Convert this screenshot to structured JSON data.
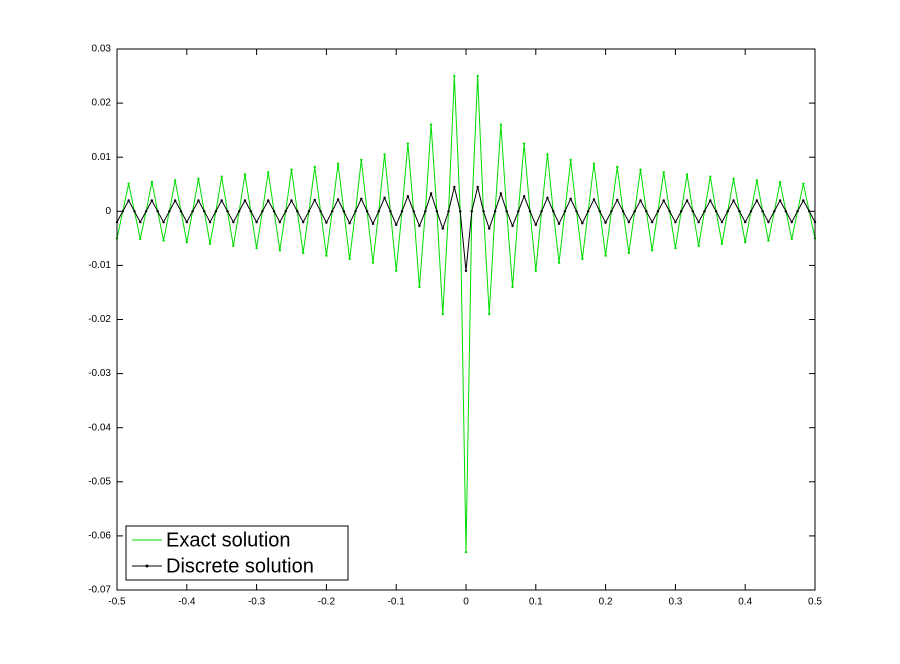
{
  "chart_data": {
    "type": "line",
    "legend": "lower left",
    "xlim": [
      -0.5,
      0.5
    ],
    "ylim": [
      -0.07,
      0.03
    ],
    "xticks": [
      -0.5,
      -0.4,
      -0.3,
      -0.2,
      -0.1,
      0,
      0.1,
      0.2,
      0.3,
      0.4,
      0.5
    ],
    "yticks": [
      0.03,
      0.02,
      0.01,
      0,
      -0.01,
      -0.02,
      -0.03,
      -0.04,
      -0.05,
      -0.06,
      -0.07
    ],
    "x": [
      -0.5,
      -0.4917,
      -0.4833,
      -0.475,
      -0.4667,
      -0.4583,
      -0.45,
      -0.4417,
      -0.4333,
      -0.425,
      -0.4167,
      -0.4083,
      -0.4,
      -0.3917,
      -0.3833,
      -0.375,
      -0.3667,
      -0.3583,
      -0.35,
      -0.3417,
      -0.3333,
      -0.325,
      -0.3167,
      -0.3083,
      -0.3,
      -0.2917,
      -0.2833,
      -0.275,
      -0.2667,
      -0.2583,
      -0.25,
      -0.2417,
      -0.2333,
      -0.225,
      -0.2167,
      -0.2083,
      -0.2,
      -0.1917,
      -0.1833,
      -0.175,
      -0.1667,
      -0.1583,
      -0.15,
      -0.1417,
      -0.1333,
      -0.125,
      -0.1167,
      -0.1083,
      -0.1,
      -0.0917,
      -0.0833,
      -0.075,
      -0.0667,
      -0.0583,
      -0.05,
      -0.0417,
      -0.0333,
      -0.025,
      -0.0167,
      -0.0083,
      0,
      0.0083,
      0.0167,
      0.025,
      0.0333,
      0.0417,
      0.05,
      0.0583,
      0.0667,
      0.075,
      0.0833,
      0.0917,
      0.1,
      0.1083,
      0.1167,
      0.125,
      0.1333,
      0.1417,
      0.15,
      0.1583,
      0.1667,
      0.175,
      0.1833,
      0.1917,
      0.2,
      0.2083,
      0.2167,
      0.225,
      0.2333,
      0.2417,
      0.25,
      0.2583,
      0.2667,
      0.275,
      0.2833,
      0.2917,
      0.3,
      0.3083,
      0.3167,
      0.325,
      0.3333,
      0.3417,
      0.35,
      0.3583,
      0.3667,
      0.375,
      0.3833,
      0.3917,
      0.4,
      0.4083,
      0.4167,
      0.425,
      0.4333,
      0.4417,
      0.45,
      0.4583,
      0.4667,
      0.475,
      0.4833,
      0.4917,
      0.5
    ],
    "series": [
      {
        "name": "Exact solution",
        "color": "#00dd00",
        "marker": ".",
        "values": [
          -0.005,
          0,
          0.0051,
          0,
          -0.0051,
          0,
          0.0054,
          0,
          -0.0054,
          0,
          0.0057,
          0,
          -0.0057,
          0,
          0.006,
          0,
          -0.006,
          0,
          0.0064,
          0,
          -0.0064,
          0,
          0.0068,
          0,
          -0.0068,
          0,
          0.0072,
          0,
          -0.0072,
          0,
          0.0077,
          0,
          -0.0077,
          0,
          0.0082,
          0,
          -0.0082,
          0,
          0.0088,
          0,
          -0.0088,
          0,
          0.0095,
          0,
          -0.0095,
          0,
          0.0105,
          0,
          -0.011,
          0,
          0.0125,
          0,
          -0.014,
          0,
          0.016,
          0,
          -0.019,
          0,
          0.025,
          0,
          -0.063,
          0,
          0.025,
          0,
          -0.019,
          0,
          0.016,
          0,
          -0.014,
          0,
          0.0125,
          0,
          -0.011,
          0,
          0.0105,
          0,
          -0.0095,
          0,
          0.0095,
          0,
          -0.0088,
          0,
          0.0088,
          0,
          -0.0082,
          0,
          0.0082,
          0,
          -0.0077,
          0,
          0.0077,
          0,
          -0.0072,
          0,
          0.0072,
          0,
          -0.0068,
          0,
          0.0068,
          0,
          -0.0064,
          0,
          0.0064,
          0,
          -0.006,
          0,
          0.006,
          0,
          -0.0057,
          0,
          0.0057,
          0,
          -0.0054,
          0,
          0.0054,
          0,
          -0.0051,
          0,
          0.0051,
          0,
          -0.005
        ]
      },
      {
        "name": "Discrete solution",
        "color": "#000000",
        "marker": ".",
        "values": [
          -0.002,
          0,
          0.002,
          0,
          -0.002,
          0,
          0.002,
          0,
          -0.002,
          0,
          0.002,
          0,
          -0.002,
          0,
          0.002,
          0,
          -0.002,
          0,
          0.002,
          0,
          -0.002,
          0,
          0.002,
          0,
          -0.002,
          0,
          0.002,
          0,
          -0.002,
          0,
          0.002,
          0,
          -0.002,
          0,
          0.0021,
          0,
          -0.0021,
          0,
          0.0022,
          0,
          -0.0022,
          0,
          0.0023,
          0,
          -0.0023,
          0,
          0.0025,
          0,
          -0.0025,
          0,
          0.0028,
          0,
          -0.0027,
          0,
          0.0033,
          0,
          -0.0032,
          0,
          0.0045,
          0,
          -0.011,
          0,
          0.0045,
          0,
          -0.0032,
          0,
          0.0033,
          0,
          -0.0027,
          0,
          0.0028,
          0,
          -0.0025,
          0,
          0.0025,
          0,
          -0.0023,
          0,
          0.0023,
          0,
          -0.0022,
          0,
          0.0022,
          0,
          -0.0021,
          0,
          0.0021,
          0,
          -0.002,
          0,
          0.002,
          0,
          -0.002,
          0,
          0.002,
          0,
          -0.002,
          0,
          0.002,
          0,
          -0.002,
          0,
          0.002,
          0,
          -0.002,
          0,
          0.002,
          0,
          -0.002,
          0,
          0.002,
          0,
          -0.002,
          0,
          0.002,
          0,
          -0.002,
          0,
          0.002,
          0,
          -0.002
        ]
      }
    ]
  }
}
